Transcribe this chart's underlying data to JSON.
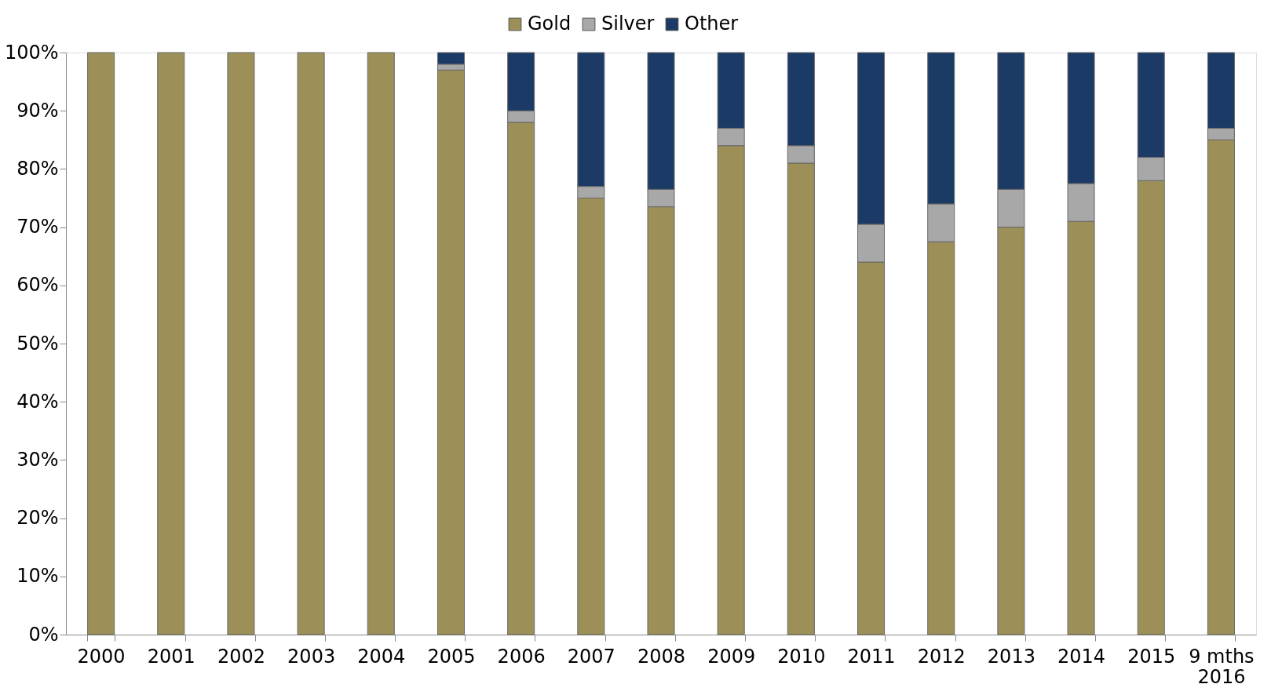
{
  "chart_data": {
    "type": "bar",
    "stacked": true,
    "legend": "top",
    "grid": false,
    "categories": [
      "2000",
      "2001",
      "2002",
      "2003",
      "2004",
      "2005",
      "2006",
      "2007",
      "2008",
      "2009",
      "2010",
      "2011",
      "2012",
      "2013",
      "2014",
      "2015",
      "9 mths 2016"
    ],
    "series": [
      {
        "name": "Gold",
        "color": "#9c9058",
        "values": [
          100,
          100,
          100,
          100,
          100,
          97,
          88,
          75,
          73.5,
          84,
          81,
          64,
          67.5,
          70,
          71,
          78,
          85
        ]
      },
      {
        "name": "Silver",
        "color": "#a8a8a8",
        "values": [
          null,
          null,
          null,
          null,
          null,
          1,
          2,
          2,
          3,
          3,
          3,
          6.5,
          6.5,
          6.5,
          6.5,
          4,
          2
        ]
      },
      {
        "name": "Other",
        "color": "#1c3a66",
        "values": [
          null,
          null,
          null,
          null,
          null,
          2,
          10,
          23,
          23.5,
          13,
          16,
          29.5,
          26,
          23.5,
          22.5,
          18,
          13
        ]
      }
    ],
    "ylim": [
      0,
      100
    ],
    "yticks": [
      {
        "value": 0,
        "label": "0%"
      },
      {
        "value": 10,
        "label": "10%"
      },
      {
        "value": 20,
        "label": "20%"
      },
      {
        "value": 30,
        "label": "30%"
      },
      {
        "value": 40,
        "label": "40%"
      },
      {
        "value": 50,
        "label": "50%"
      },
      {
        "value": 60,
        "label": "60%"
      },
      {
        "value": 70,
        "label": "70%"
      },
      {
        "value": 80,
        "label": "80%"
      },
      {
        "value": 90,
        "label": "90%"
      },
      {
        "value": 100,
        "label": "100%"
      }
    ]
  }
}
